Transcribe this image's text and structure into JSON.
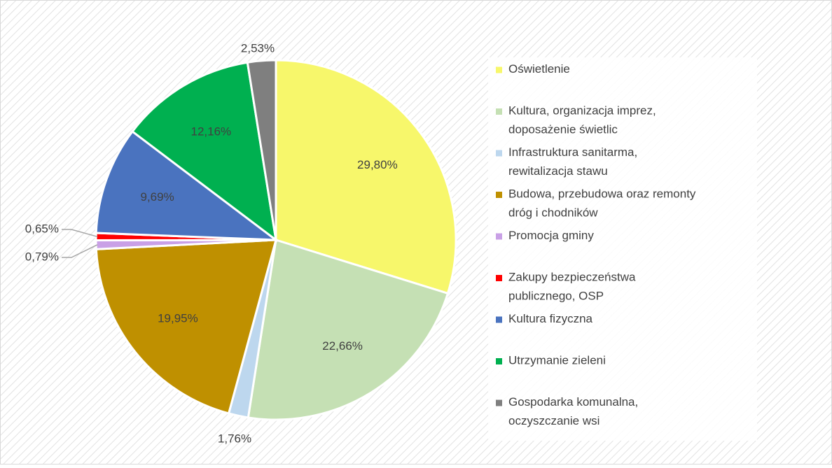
{
  "chart_data": {
    "type": "pie",
    "categories": [
      "Oświetlenie",
      "Kultura, organizacja imprez, doposażenie świetlic",
      "Infrastruktura sanitarma, rewitalizacja stawu",
      "Budowa, przebudowa oraz remonty dróg i chodników",
      "Promocja gminy",
      "Zakupy bezpieczeństwa publicznego, OSP",
      "Kultura fizyczna",
      "Utrzymanie zieleni",
      "Gospodarka komunalna, oczyszczanie wsi"
    ],
    "values": [
      29.8,
      22.66,
      1.76,
      19.95,
      0.79,
      0.65,
      9.69,
      12.16,
      2.53
    ],
    "value_labels": [
      "29,80%",
      "22,66%",
      "1,76%",
      "19,95%",
      "0,79%",
      "0,65%",
      "9,69%",
      "12,16%",
      "2,53%"
    ],
    "colors": [
      "#f7f76b",
      "#c5e0b4",
      "#bdd7ee",
      "#bf9000",
      "#c9a0e6",
      "#ff0000",
      "#4a73bf",
      "#00b050",
      "#7f7f7f"
    ],
    "legend": "right"
  }
}
